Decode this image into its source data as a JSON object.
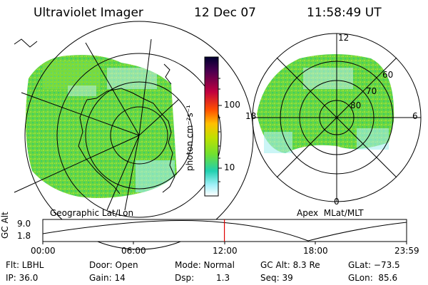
{
  "header": {
    "instrument": "Ultraviolet Imager",
    "date": "12 Dec 07",
    "time": "11:58:49 UT"
  },
  "left_panel": {
    "caption": "Geographic Lat/Lon"
  },
  "right_panel": {
    "caption": "Apex  MLat/MLT",
    "mlt_labels": {
      "top": "12",
      "right": "6",
      "bottom": "0",
      "left": "18"
    },
    "lat_labels": [
      "60",
      "70",
      "80"
    ]
  },
  "colorbar": {
    "unit_label": "photon cm⁻²s⁻¹",
    "ticks": [
      "100",
      "10"
    ],
    "colors": [
      "#000030",
      "#4a0050",
      "#c00040",
      "#ff5000",
      "#ffc000",
      "#c0e000",
      "#70e030",
      "#20d0b0",
      "#a0f0f8",
      "#ffffff"
    ]
  },
  "timeline": {
    "ylabel": "GC Alt",
    "yticks": [
      "9.0",
      "1.8"
    ],
    "xticks": [
      "00:00",
      "06:00",
      "12:00",
      "18:00",
      "23:59"
    ],
    "marker_color": "#e00000",
    "marker_hour": 11.98
  },
  "info": {
    "filter": "Flt: LBHL",
    "door": "Door: Open",
    "mode": "Mode: Normal",
    "gcalt": "GC Alt: 8.3 Re",
    "glat": "GLat: −73.5",
    "ip": "IP: 36.0",
    "gain": "Gain: 14",
    "dsp_label": "Dsp:",
    "dsp_value": "1.3",
    "seq": "Seq: 39",
    "glon": "GLon:  85.6"
  }
}
